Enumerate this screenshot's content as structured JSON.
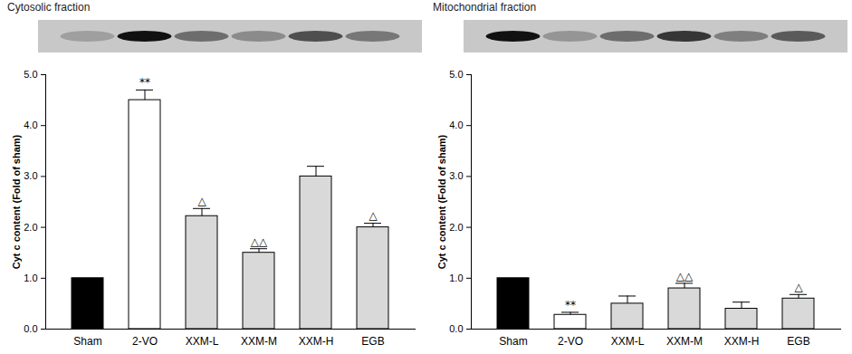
{
  "chart_data": [
    {
      "type": "bar",
      "title": "Cytosolic fraction",
      "categories": [
        "Sham",
        "2-VO",
        "XXM-L",
        "XXM-M",
        "XXM-H",
        "EGB"
      ],
      "values": [
        1,
        4.5,
        2.22,
        1.5,
        3.0,
        2.0
      ],
      "errors": [
        0,
        0.2,
        0.15,
        0.08,
        0.2,
        0.08
      ],
      "annotations": [
        null,
        "**",
        "△",
        "△△",
        null,
        "△"
      ],
      "colors": [
        "#000000",
        "#ffffff",
        "#d9d9d9",
        "#d9d9d9",
        "#d9d9d9",
        "#d9d9d9"
      ],
      "ylabel": "Cyt c content (Fold of sham)",
      "ylim": [
        0,
        5
      ],
      "yticks": [
        0,
        1,
        2,
        3,
        4,
        5
      ]
    },
    {
      "type": "bar",
      "title": "Mitochondrial fraction",
      "categories": [
        "Sham",
        "2-VO",
        "XXM-L",
        "XXM-M",
        "XXM-H",
        "EGB"
      ],
      "values": [
        1,
        0.28,
        0.5,
        0.8,
        0.4,
        0.6
      ],
      "errors": [
        0,
        0.05,
        0.15,
        0.1,
        0.13,
        0.08
      ],
      "annotations": [
        null,
        "**",
        null,
        "△△",
        null,
        "△"
      ],
      "colors": [
        "#000000",
        "#ffffff",
        "#d9d9d9",
        "#d9d9d9",
        "#d9d9d9",
        "#d9d9d9"
      ],
      "ylabel": "Cyt c content (Fold of sham)",
      "ylim": [
        0,
        5
      ],
      "yticks": [
        0,
        1,
        2,
        3,
        4,
        5
      ]
    }
  ]
}
